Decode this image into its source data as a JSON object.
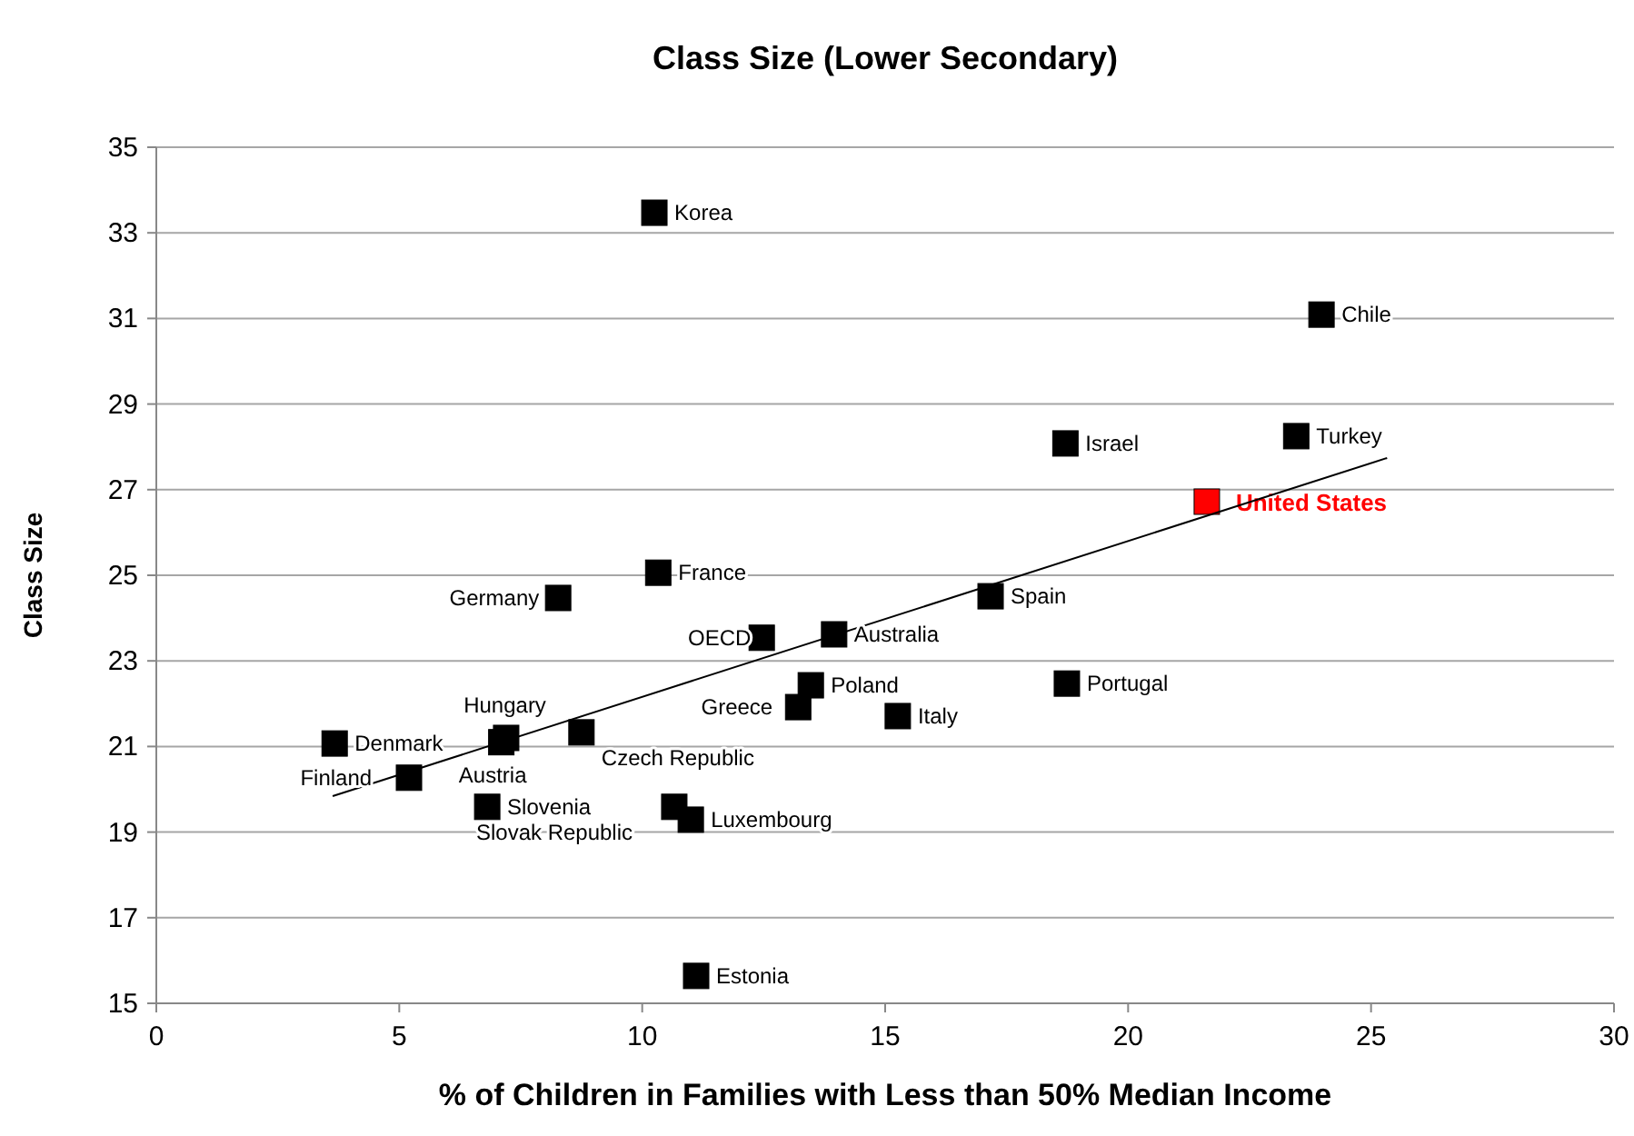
{
  "chart_data": {
    "type": "scatter",
    "title": "Class Size (Lower Secondary)",
    "xlabel": "% of Children in Families with Less than 50% Median Income",
    "ylabel": "Class Size",
    "xlim": [
      0,
      30
    ],
    "xticks": [
      0,
      5,
      10,
      15,
      20,
      25,
      30
    ],
    "ylim": [
      15,
      35
    ],
    "yticks": [
      15,
      17,
      19,
      21,
      23,
      25,
      27,
      29,
      31,
      33,
      35
    ],
    "grid": "y",
    "marker": "square",
    "series": [
      {
        "color": "#000000",
        "x": [
          10.25,
          23.98,
          18.71,
          23.46,
          10.33,
          8.27,
          17.17,
          12.46,
          13.95,
          13.47,
          18.74,
          13.21,
          15.26,
          3.67,
          7.2,
          7.1,
          8.75,
          5.2,
          6.81,
          10.66,
          11.0,
          11.11
        ],
        "values": [
          33.47,
          31.09,
          28.08,
          28.25,
          25.06,
          24.47,
          24.51,
          23.54,
          23.62,
          22.43,
          22.47,
          21.92,
          21.71,
          21.07,
          21.2,
          21.1,
          21.33,
          20.27,
          19.59,
          19.59,
          19.29,
          15.64
        ]
      },
      {
        "name": "United States",
        "color": "#ff0000",
        "x": [
          21.62
        ],
        "values": [
          26.72
        ]
      },
      {
        "type": "line",
        "color": "#000000",
        "marker": "none",
        "x": [
          3.63,
          25.33
        ],
        "values": [
          19.84,
          27.74
        ]
      }
    ],
    "annotations": [
      {
        "text": "Korea",
        "x": 10.25,
        "y": 33.47
      },
      {
        "text": "Chile",
        "x": 23.98,
        "y": 31.09
      },
      {
        "text": "Israel",
        "x": 18.71,
        "y": 28.08
      },
      {
        "text": "Turkey",
        "x": 23.46,
        "y": 28.25
      },
      {
        "text": "France",
        "x": 10.33,
        "y": 25.06
      },
      {
        "text": "Germany",
        "x": 8.27,
        "y": 24.47
      },
      {
        "text": "Spain",
        "x": 17.17,
        "y": 24.51
      },
      {
        "text": "OECD",
        "x": 12.46,
        "y": 23.54
      },
      {
        "text": "Australia",
        "x": 13.95,
        "y": 23.62
      },
      {
        "text": "Poland",
        "x": 13.47,
        "y": 22.43
      },
      {
        "text": "Portugal",
        "x": 18.74,
        "y": 22.47
      },
      {
        "text": "Greece",
        "x": 13.21,
        "y": 21.92
      },
      {
        "text": "Italy",
        "x": 15.26,
        "y": 21.71
      },
      {
        "text": "Denmark",
        "x": 3.67,
        "y": 21.07
      },
      {
        "text": "Hungary",
        "x": 7.2,
        "y": 21.2
      },
      {
        "text": "Austria",
        "x": 7.1,
        "y": 21.1
      },
      {
        "text": "Czech Republic",
        "x": 8.75,
        "y": 21.33
      },
      {
        "text": "Finland",
        "x": 5.2,
        "y": 20.27
      },
      {
        "text": "Slovenia",
        "x": 6.81,
        "y": 19.59
      },
      {
        "text": "Slovak Republic",
        "x": 10.66,
        "y": 19.59
      },
      {
        "text": "Luxembourg",
        "x": 11.0,
        "y": 19.29
      },
      {
        "text": "Estonia",
        "x": 11.11,
        "y": 15.64
      }
    ]
  }
}
